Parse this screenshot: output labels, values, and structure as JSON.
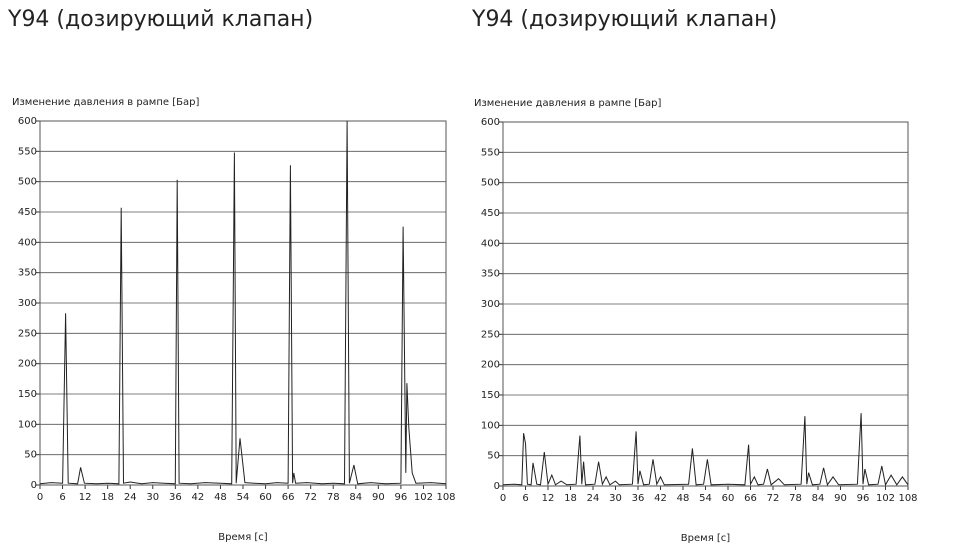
{
  "chart_data": [
    {
      "type": "line",
      "title": "Y94 (дозирующий клапан)",
      "ylabel": "Изменение давления в рампе [Бар]",
      "xlabel": "Время [с]",
      "x": [
        0,
        3,
        6,
        6.8,
        7.5,
        10,
        10.8,
        11.8,
        15,
        18,
        21,
        21.6,
        22.2,
        24,
        27,
        30,
        33,
        36,
        36.5,
        37,
        40,
        44,
        48,
        51,
        51.7,
        52.2,
        53.2,
        54.5,
        57,
        60,
        63,
        66,
        66.6,
        67.2,
        67.5,
        68,
        71,
        75,
        78,
        81,
        81.7,
        82.3,
        83.5,
        84.5,
        88,
        92,
        96,
        96.6,
        97.3,
        97.6,
        98.1,
        99,
        100,
        104,
        108
      ],
      "values": [
        2,
        4,
        3,
        283,
        3,
        2,
        29,
        3,
        2,
        3,
        2,
        457,
        3,
        5,
        2,
        4,
        3,
        2,
        503,
        3,
        2,
        4,
        3,
        2,
        548,
        3,
        77,
        4,
        3,
        2,
        4,
        3,
        527,
        3,
        20,
        3,
        4,
        2,
        3,
        2,
        600,
        3,
        33,
        2,
        4,
        2,
        3,
        426,
        20,
        168,
        95,
        20,
        3,
        4,
        2
      ],
      "color": "#222222",
      "xlim": [
        0,
        108
      ],
      "ylim": [
        0,
        600
      ],
      "xticks": [
        0,
        6,
        12,
        18,
        24,
        30,
        36,
        42,
        48,
        54,
        60,
        66,
        72,
        78,
        84,
        90,
        96,
        102,
        108
      ],
      "yticks": [
        0,
        50,
        100,
        150,
        200,
        250,
        300,
        350,
        400,
        450,
        500,
        550,
        600
      ],
      "grid": true
    },
    {
      "type": "line",
      "title": "Y94 (дозирующий клапан)",
      "ylabel": "Изменение давления в рампе [Бар]",
      "xlabel": "Время [с]",
      "x": [
        0,
        3,
        5,
        5.5,
        6,
        6.5,
        7.5,
        8,
        9,
        10,
        11,
        12,
        13,
        14,
        15.5,
        17,
        19.5,
        20.5,
        21,
        21.5,
        22,
        24.5,
        25.5,
        26.5,
        27.5,
        28.5,
        30,
        31,
        34.5,
        35.5,
        36,
        36.5,
        37.5,
        39,
        40,
        41,
        42,
        43,
        49.5,
        50.5,
        51.5,
        53.5,
        54.5,
        55.5,
        60,
        64.5,
        65.5,
        66,
        67,
        68,
        69.5,
        70.5,
        71.5,
        73.5,
        75,
        79.5,
        80.5,
        81,
        81.5,
        82.5,
        84.5,
        85.5,
        86.5,
        88,
        89.5,
        94.5,
        95.5,
        96,
        96.5,
        97.5,
        100,
        101,
        102,
        103.5,
        105,
        106.5,
        108
      ],
      "values": [
        2,
        3,
        2,
        87,
        70,
        3,
        2,
        38,
        3,
        2,
        56,
        3,
        18,
        2,
        8,
        2,
        3,
        83,
        3,
        40,
        2,
        3,
        40,
        3,
        15,
        2,
        8,
        2,
        3,
        90,
        3,
        25,
        2,
        3,
        44,
        3,
        15,
        2,
        3,
        62,
        2,
        3,
        44,
        2,
        3,
        2,
        68,
        3,
        15,
        2,
        3,
        28,
        2,
        12,
        2,
        3,
        115,
        3,
        22,
        2,
        3,
        30,
        2,
        15,
        2,
        3,
        120,
        3,
        28,
        2,
        3,
        33,
        2,
        18,
        2,
        15,
        2
      ],
      "color": "#222222",
      "xlim": [
        0,
        108
      ],
      "ylim": [
        0,
        600
      ],
      "xticks": [
        0,
        6,
        12,
        18,
        24,
        30,
        36,
        42,
        48,
        54,
        60,
        66,
        72,
        78,
        84,
        90,
        96,
        102,
        108
      ],
      "yticks": [
        0,
        50,
        100,
        150,
        200,
        250,
        300,
        350,
        400,
        450,
        500,
        550,
        600
      ],
      "grid": true
    }
  ]
}
